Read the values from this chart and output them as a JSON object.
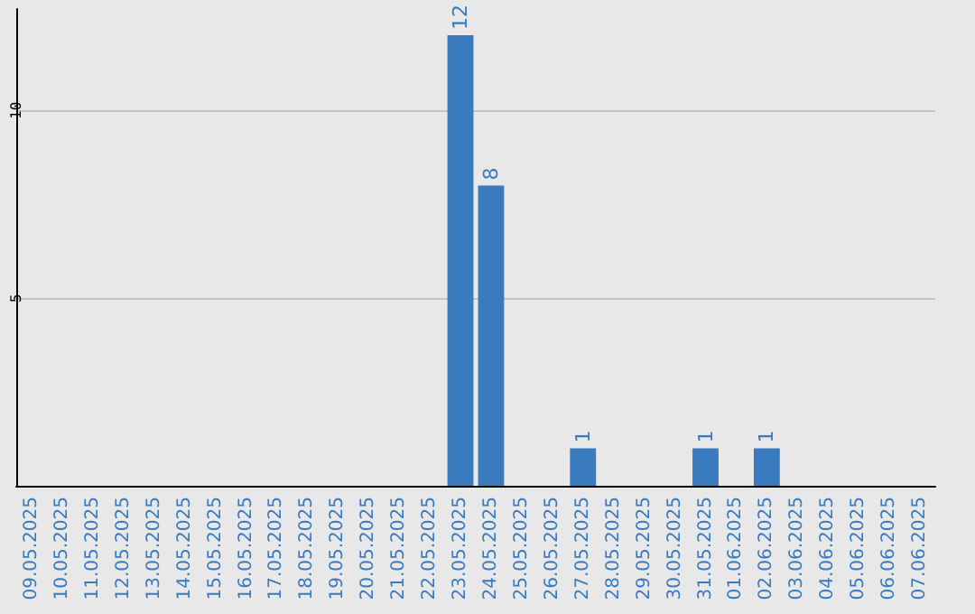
{
  "chart_data": {
    "type": "bar",
    "categories": [
      "09.05.2025",
      "10.05.2025",
      "11.05.2025",
      "12.05.2025",
      "13.05.2025",
      "14.05.2025",
      "15.05.2025",
      "16.05.2025",
      "17.05.2025",
      "18.05.2025",
      "19.05.2025",
      "20.05.2025",
      "21.05.2025",
      "22.05.2025",
      "23.05.2025",
      "24.05.2025",
      "25.05.2025",
      "26.05.2025",
      "27.05.2025",
      "28.05.2025",
      "29.05.2025",
      "30.05.2025",
      "31.05.2025",
      "01.06.2025",
      "02.06.2025",
      "03.06.2025",
      "04.06.2025",
      "05.06.2025",
      "06.06.2025",
      "07.06.2025"
    ],
    "values": [
      0,
      0,
      0,
      0,
      0,
      0,
      0,
      0,
      0,
      0,
      0,
      0,
      0,
      0,
      12,
      8,
      0,
      0,
      1,
      0,
      0,
      0,
      1,
      0,
      1,
      0,
      0,
      0,
      0,
      0
    ],
    "value_labels": [
      null,
      null,
      null,
      null,
      null,
      null,
      null,
      null,
      null,
      null,
      null,
      null,
      null,
      null,
      "12",
      "8",
      null,
      null,
      "1",
      null,
      null,
      null,
      "1",
      null,
      "1",
      null,
      null,
      null,
      null,
      null
    ],
    "color": "#3a7bbf",
    "ylim": [
      0,
      12.7
    ],
    "yticks": [
      5,
      10
    ],
    "grid": "y"
  }
}
